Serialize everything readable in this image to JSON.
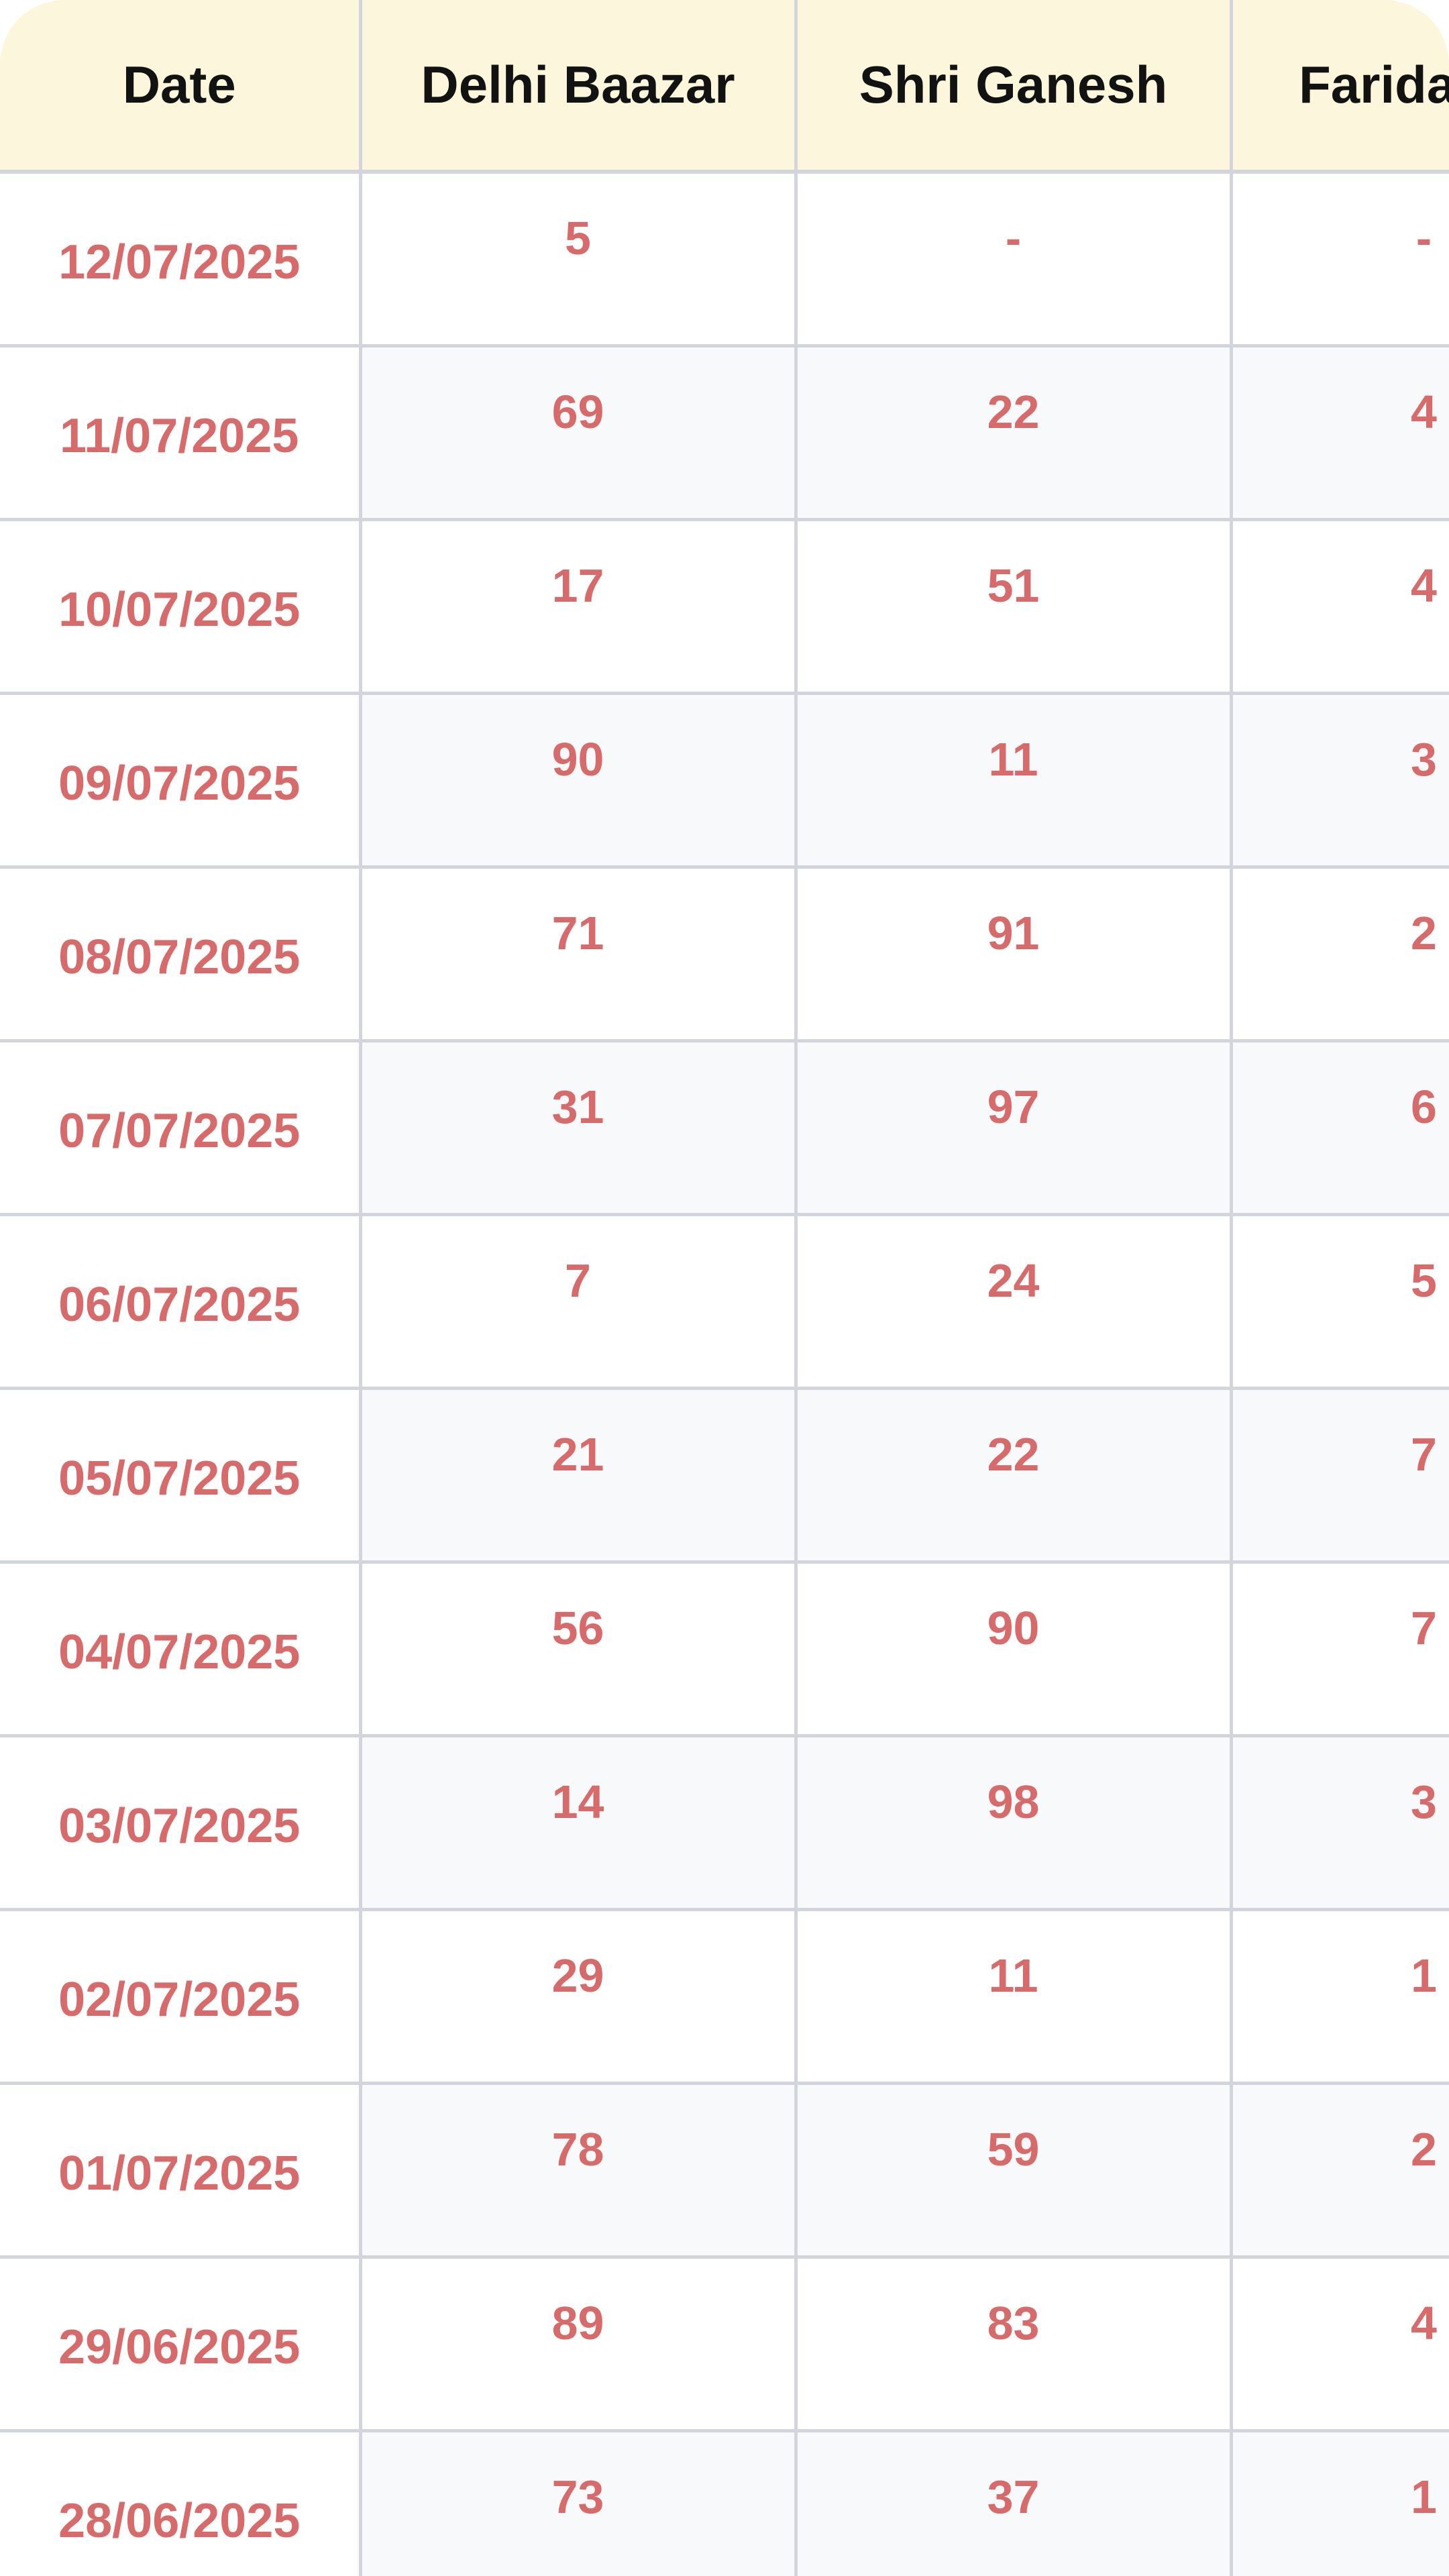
{
  "table": {
    "headers": [
      "Date",
      "Delhi Baazar",
      "Shri Ganesh",
      "Faridabad"
    ],
    "rows": [
      {
        "date": "12/07/2025",
        "delhi_baazar": "5",
        "shri_ganesh": "-",
        "faridabad": "-"
      },
      {
        "date": "11/07/2025",
        "delhi_baazar": "69",
        "shri_ganesh": "22",
        "faridabad": "4"
      },
      {
        "date": "10/07/2025",
        "delhi_baazar": "17",
        "shri_ganesh": "51",
        "faridabad": "4"
      },
      {
        "date": "09/07/2025",
        "delhi_baazar": "90",
        "shri_ganesh": "11",
        "faridabad": "3"
      },
      {
        "date": "08/07/2025",
        "delhi_baazar": "71",
        "shri_ganesh": "91",
        "faridabad": "2"
      },
      {
        "date": "07/07/2025",
        "delhi_baazar": "31",
        "shri_ganesh": "97",
        "faridabad": "6"
      },
      {
        "date": "06/07/2025",
        "delhi_baazar": "7",
        "shri_ganesh": "24",
        "faridabad": "5"
      },
      {
        "date": "05/07/2025",
        "delhi_baazar": "21",
        "shri_ganesh": "22",
        "faridabad": "7"
      },
      {
        "date": "04/07/2025",
        "delhi_baazar": "56",
        "shri_ganesh": "90",
        "faridabad": "7"
      },
      {
        "date": "03/07/2025",
        "delhi_baazar": "14",
        "shri_ganesh": "98",
        "faridabad": "3"
      },
      {
        "date": "02/07/2025",
        "delhi_baazar": "29",
        "shri_ganesh": "11",
        "faridabad": "1"
      },
      {
        "date": "01/07/2025",
        "delhi_baazar": "78",
        "shri_ganesh": "59",
        "faridabad": "2"
      },
      {
        "date": "29/06/2025",
        "delhi_baazar": "89",
        "shri_ganesh": "83",
        "faridabad": "4"
      },
      {
        "date": "28/06/2025",
        "delhi_baazar": "73",
        "shri_ganesh": "37",
        "faridabad": "1"
      }
    ]
  },
  "colors": {
    "header_bg": "#fcf7dc",
    "header_text": "#121212",
    "value_text": "#d76a6a",
    "row_alt_bg": "#f8f9fb",
    "grid_line": "#d2d5dc"
  }
}
